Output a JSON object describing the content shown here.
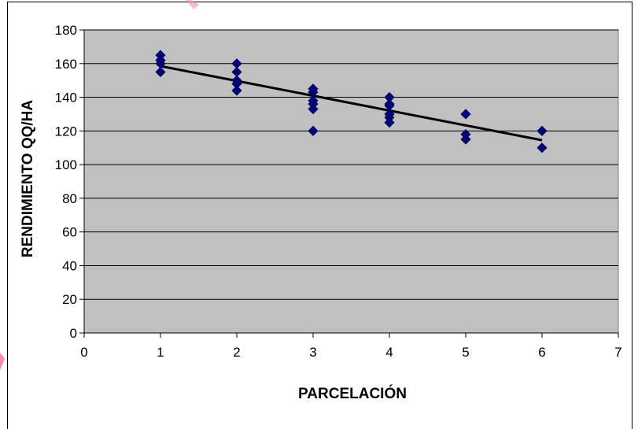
{
  "chart_data": {
    "type": "scatter",
    "xlabel": "PARCELACIÓN",
    "ylabel": "RENDIMIENTO QQ/HA",
    "xlim": [
      0,
      7
    ],
    "ylim": [
      0,
      180
    ],
    "x_ticks": [
      0,
      1,
      2,
      3,
      4,
      5,
      6,
      7
    ],
    "y_ticks": [
      0,
      20,
      40,
      60,
      80,
      100,
      120,
      140,
      160,
      180
    ],
    "grid": "horizontal",
    "legend": "none",
    "plot_background": "#c0c0c0",
    "marker_color": "#000080",
    "marker_shape": "diamond",
    "series": [
      {
        "points": [
          [
            1,
            165
          ],
          [
            1,
            162
          ],
          [
            1,
            160
          ],
          [
            1,
            155
          ],
          [
            2,
            160
          ],
          [
            2,
            155
          ],
          [
            2,
            150
          ],
          [
            2,
            148
          ],
          [
            2,
            144
          ],
          [
            3,
            145
          ],
          [
            3,
            143
          ],
          [
            3,
            138
          ],
          [
            3,
            136
          ],
          [
            3,
            133
          ],
          [
            3,
            120
          ],
          [
            4,
            140
          ],
          [
            4,
            136
          ],
          [
            4,
            135
          ],
          [
            4,
            130
          ],
          [
            4,
            128
          ],
          [
            4,
            125
          ],
          [
            5,
            130
          ],
          [
            5,
            118
          ],
          [
            5,
            115
          ],
          [
            6,
            120
          ],
          [
            6,
            110
          ]
        ]
      }
    ],
    "trendline": {
      "type": "linear",
      "color": "#000000",
      "x": [
        1,
        6
      ],
      "y": [
        158.5,
        114.5
      ]
    }
  }
}
